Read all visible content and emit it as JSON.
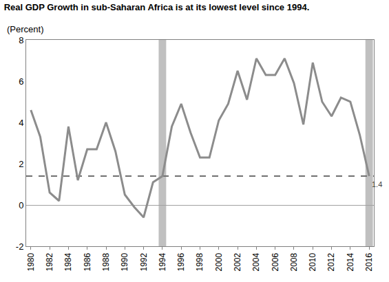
{
  "chart_data": {
    "type": "line",
    "title": "Real GDP Growth in sub-Saharan Africa is at its lowest level since 1994.",
    "subtitle": "(Percent)",
    "x": [
      1980,
      1981,
      1982,
      1983,
      1984,
      1985,
      1986,
      1987,
      1988,
      1989,
      1990,
      1991,
      1992,
      1993,
      1994,
      1995,
      1996,
      1997,
      1998,
      1999,
      2000,
      2001,
      2002,
      2003,
      2004,
      2005,
      2006,
      2007,
      2008,
      2009,
      2010,
      2011,
      2012,
      2013,
      2014,
      2015,
      2016
    ],
    "values": [
      4.6,
      3.3,
      0.6,
      0.2,
      3.8,
      1.2,
      2.7,
      2.7,
      4.0,
      2.6,
      0.5,
      -0.1,
      -0.6,
      1.1,
      1.4,
      3.8,
      4.9,
      3.5,
      2.3,
      2.3,
      4.1,
      4.9,
      6.5,
      5.1,
      7.1,
      6.3,
      6.3,
      7.1,
      5.9,
      3.9,
      6.9,
      5.0,
      4.3,
      5.2,
      5.0,
      3.4,
      1.4
    ],
    "color": "#8c8c8c",
    "xlim": [
      1979.5,
      2016.5
    ],
    "xticks": [
      1980,
      1982,
      1984,
      1986,
      1988,
      1990,
      1992,
      1994,
      1996,
      1998,
      2000,
      2002,
      2004,
      2006,
      2008,
      2010,
      2012,
      2014,
      2016
    ],
    "ylim": [
      -2,
      8
    ],
    "yticks": [
      -2,
      0,
      2,
      4,
      6,
      8
    ],
    "grid": false,
    "shaded_years": [
      1994,
      2016
    ],
    "reference_line": 1.4,
    "annotations": [
      {
        "x": 2016,
        "y": 1.4,
        "text": "1.4"
      }
    ]
  }
}
